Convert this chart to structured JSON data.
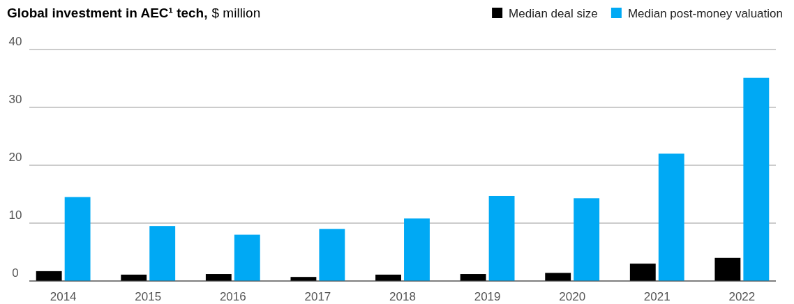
{
  "chart_data": {
    "type": "bar",
    "title": "Global investment in AEC¹ tech,",
    "subtitle": "$ million",
    "categories": [
      "2014",
      "2015",
      "2016",
      "2017",
      "2018",
      "2019",
      "2020",
      "2021",
      "2022"
    ],
    "series": [
      {
        "name": "Median deal size",
        "color": "#000000",
        "values": [
          1.7,
          1.1,
          1.2,
          0.7,
          1.1,
          1.2,
          1.4,
          3.0,
          4.0
        ]
      },
      {
        "name": "Median post-money valuation",
        "color": "#00a9f4",
        "values": [
          14.5,
          9.5,
          8.0,
          9.0,
          10.8,
          14.7,
          14.3,
          22.0,
          35.1
        ]
      }
    ],
    "ylim": [
      0,
      40
    ],
    "yticks": [
      0,
      10,
      20,
      30,
      40
    ],
    "grid": "y",
    "legend": "top right"
  }
}
